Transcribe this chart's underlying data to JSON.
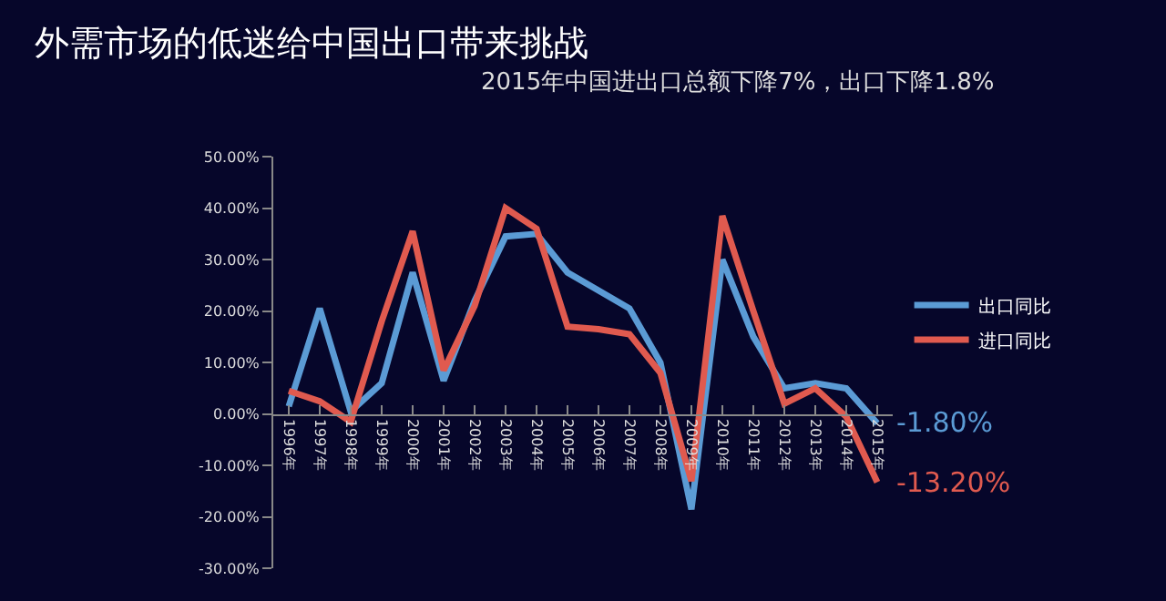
{
  "chart_data": {
    "type": "line",
    "title": "外需市场的低迷给中国出口带来挑战",
    "subtitle": "2015年中国进出口总额下降7%，出口下降1.8%",
    "categories": [
      "1996年",
      "1997年",
      "1998年",
      "1999年",
      "2000年",
      "2001年",
      "2002年",
      "2003年",
      "2004年",
      "2005年",
      "2006年",
      "2007年",
      "2008年",
      "2009年",
      "2010年",
      "2011年",
      "2012年",
      "2013年",
      "2014年",
      "2015年"
    ],
    "series": [
      {
        "name": "出口同比",
        "color": "#5b9bd5",
        "values": [
          1.5,
          20.5,
          0.5,
          6,
          27.5,
          6.5,
          22,
          34.5,
          35,
          27.5,
          24,
          20.5,
          10,
          -18.5,
          30,
          15,
          5,
          6,
          5,
          -1.8
        ]
      },
      {
        "name": "进口同比",
        "color": "#e05a4f",
        "values": [
          4.5,
          2.5,
          -1.5,
          18,
          35.5,
          8.5,
          21,
          40,
          36,
          17,
          16.5,
          15.5,
          8,
          -13,
          38.5,
          20,
          2,
          5,
          -0.5,
          -13.2
        ]
      }
    ],
    "ylim": [
      -30,
      50
    ],
    "yticks": [
      {
        "value": -30,
        "label": "-30.00%"
      },
      {
        "value": -20,
        "label": "-20.00%"
      },
      {
        "value": -10,
        "label": "-10.00%"
      },
      {
        "value": 0,
        "label": "0.00%"
      },
      {
        "value": 10,
        "label": "10.00%"
      },
      {
        "value": 20,
        "label": "20.00%"
      },
      {
        "value": 30,
        "label": "30.00%"
      },
      {
        "value": 40,
        "label": "40.00%"
      },
      {
        "value": 50,
        "label": "50.00%"
      }
    ],
    "annotations": [
      {
        "text": "-1.80%",
        "x": "2015年",
        "y": -1.8
      },
      {
        "text": "-13.20%",
        "x": "2015年",
        "y": -13.2
      }
    ],
    "grid": false,
    "legend": "right",
    "marker": "none",
    "line_style": "solid"
  }
}
